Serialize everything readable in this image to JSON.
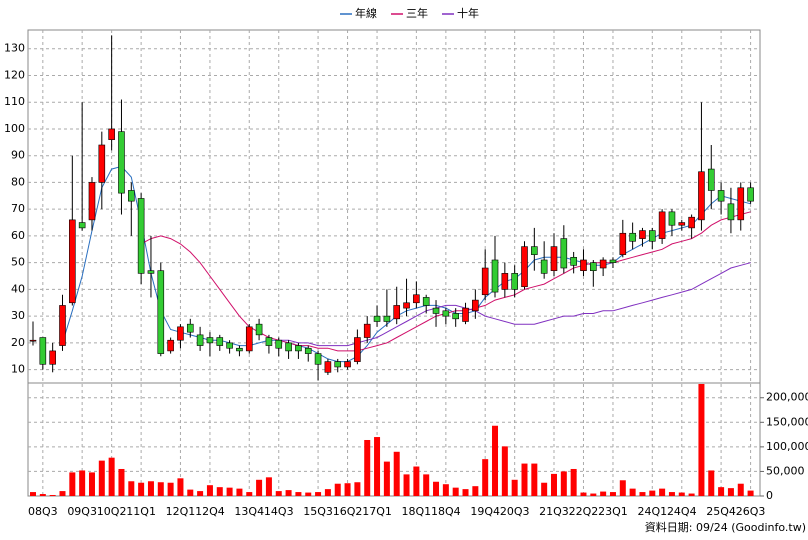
{
  "chart_data": {
    "type": "candlestick",
    "categories": [
      null,
      "08Q3",
      null,
      null,
      null,
      "09Q3",
      null,
      null,
      "10Q2",
      null,
      null,
      "11Q1",
      null,
      null,
      null,
      "12Q1",
      null,
      null,
      "12Q4",
      null,
      null,
      null,
      "13Q4",
      null,
      null,
      "14Q3",
      null,
      null,
      null,
      "15Q3",
      null,
      null,
      "16Q2",
      null,
      null,
      "17Q1",
      null,
      null,
      null,
      "18Q1",
      null,
      null,
      "18Q4",
      null,
      null,
      null,
      "19Q4",
      null,
      null,
      "20Q3",
      null,
      null,
      null,
      "21Q3",
      null,
      null,
      "22Q2",
      null,
      null,
      "23Q1",
      null,
      null,
      null,
      "24Q1",
      null,
      null,
      "24Q4",
      null,
      null,
      null,
      "25Q4",
      null,
      null,
      "26Q3"
    ],
    "open": [
      21,
      22,
      12,
      19,
      35,
      65,
      66,
      80,
      96,
      99,
      77,
      74,
      47,
      47,
      17,
      21,
      27,
      23,
      22,
      22,
      20,
      18,
      17,
      27,
      22,
      21,
      20,
      19,
      18,
      16,
      9,
      13,
      11,
      13,
      22,
      30,
      30,
      29,
      33,
      35,
      37,
      33,
      32,
      31,
      28,
      32,
      38,
      51,
      40,
      46,
      41,
      56,
      51,
      47,
      59,
      52,
      47,
      50,
      48,
      51,
      53,
      61,
      59,
      62,
      59,
      69,
      64,
      63,
      66,
      85,
      77,
      72,
      66,
      78
    ],
    "high": [
      28,
      22,
      20,
      38,
      90,
      110,
      82,
      99,
      135,
      111,
      80,
      76,
      60,
      50,
      22,
      27,
      29,
      26,
      24,
      23,
      21,
      19,
      27,
      29,
      23,
      22,
      21,
      20,
      19,
      17,
      14,
      14,
      14,
      25,
      30,
      34,
      40,
      41,
      44,
      43,
      38,
      36,
      33,
      33,
      35,
      40,
      55,
      60,
      50,
      49,
      58,
      63,
      58,
      61,
      64,
      54,
      55,
      51,
      52,
      52,
      66,
      65,
      63,
      63,
      70,
      70,
      66,
      68,
      110,
      94,
      80,
      78,
      80,
      80
    ],
    "low": [
      19,
      10,
      9,
      17,
      34,
      62,
      62,
      70,
      92,
      68,
      60,
      42,
      37,
      15,
      16,
      18,
      22,
      17,
      15,
      17,
      16,
      15,
      16,
      21,
      16,
      15,
      14,
      14,
      13,
      6,
      8,
      9,
      10,
      12,
      20,
      26,
      26,
      27,
      30,
      33,
      31,
      26,
      27,
      26,
      27,
      29,
      36,
      37,
      37,
      37,
      40,
      47,
      44,
      45,
      46,
      46,
      45,
      41,
      45,
      48,
      52,
      55,
      56,
      55,
      57,
      60,
      62,
      59,
      62,
      70,
      68,
      61,
      62,
      72
    ],
    "close": [
      21,
      12,
      17,
      34,
      66,
      63,
      80,
      94,
      100,
      76,
      73,
      46,
      46,
      16,
      21,
      26,
      24,
      19,
      20,
      19,
      18,
      17,
      26,
      23,
      19,
      18,
      17,
      17,
      16,
      12,
      13,
      11,
      13,
      22,
      27,
      28,
      28,
      34,
      35,
      38,
      34,
      31,
      30,
      29,
      33,
      36,
      48,
      39,
      46,
      40,
      56,
      53,
      46,
      56,
      48,
      49,
      51,
      47,
      51,
      50,
      61,
      58,
      62,
      58,
      69,
      64,
      65,
      67,
      84,
      77,
      73,
      66,
      78,
      73
    ],
    "up_color": "#ff0000",
    "down_color": "#33cc33",
    "volume": [
      8000,
      4000,
      2000,
      10000,
      48000,
      52000,
      48000,
      72000,
      78000,
      55000,
      30000,
      27000,
      30000,
      28000,
      27000,
      36000,
      13000,
      10000,
      22000,
      18000,
      17000,
      15000,
      8000,
      33000,
      38000,
      10000,
      12000,
      8000,
      7000,
      8000,
      14000,
      25000,
      26000,
      28000,
      114000,
      120000,
      70000,
      90000,
      44000,
      60000,
      44000,
      29000,
      24000,
      17000,
      14000,
      20000,
      75000,
      143000,
      101000,
      33000,
      66000,
      66000,
      27000,
      45000,
      50000,
      55000,
      7000,
      5000,
      9000,
      8000,
      32000,
      15000,
      8000,
      11000,
      15000,
      8000,
      7000,
      5000,
      228000,
      52000,
      18000,
      16000,
      25000,
      11000
    ],
    "volume_color": "#ff0000",
    "series": [
      {
        "name": "年線",
        "color": "#2a6fc0",
        "values": [
          null,
          null,
          null,
          20,
          32,
          45,
          62,
          78,
          85,
          86,
          82,
          65,
          46,
          32,
          25,
          24,
          23,
          22,
          21,
          21,
          20,
          19,
          19,
          20,
          21,
          21,
          20,
          19,
          18,
          16,
          14,
          13,
          13,
          15,
          19,
          24,
          27,
          30,
          32,
          33,
          34,
          34,
          33,
          31,
          31,
          32,
          37,
          40,
          43,
          44,
          47,
          51,
          52,
          52,
          52,
          51,
          50,
          49,
          49,
          50,
          53,
          55,
          57,
          59,
          61,
          62,
          63,
          64,
          68,
          72,
          75,
          74,
          73,
          72
        ]
      },
      {
        "name": "三年",
        "color": "#d0106a",
        "values": [
          null,
          null,
          null,
          null,
          null,
          null,
          null,
          null,
          null,
          null,
          null,
          57,
          59,
          60,
          59,
          57,
          54,
          50,
          45,
          40,
          35,
          30,
          26,
          24,
          22,
          21,
          20,
          19,
          19,
          18,
          18,
          17,
          17,
          17,
          18,
          19,
          20,
          22,
          24,
          26,
          28,
          30,
          31,
          32,
          32,
          33,
          34,
          36,
          37,
          38,
          40,
          41,
          42,
          44,
          46,
          48,
          49,
          50,
          50,
          50,
          51,
          52,
          53,
          54,
          55,
          57,
          58,
          59,
          61,
          64,
          66,
          67,
          68,
          69
        ]
      },
      {
        "name": "十年",
        "color": "#8030c0",
        "values": [
          null,
          null,
          null,
          null,
          null,
          null,
          null,
          null,
          null,
          null,
          null,
          null,
          null,
          null,
          null,
          null,
          null,
          null,
          null,
          null,
          null,
          null,
          null,
          null,
          null,
          21,
          21,
          20,
          20,
          19,
          19,
          19,
          19,
          20,
          21,
          22,
          24,
          26,
          28,
          30,
          32,
          33,
          34,
          34,
          33,
          32,
          30,
          29,
          28,
          27,
          27,
          27,
          28,
          29,
          30,
          30,
          31,
          31,
          32,
          32,
          33,
          34,
          35,
          36,
          37,
          38,
          39,
          40,
          42,
          44,
          46,
          48,
          49,
          50
        ]
      }
    ],
    "ylim": [
      5,
      137
    ],
    "yticks": [
      10,
      20,
      30,
      40,
      50,
      60,
      70,
      80,
      90,
      100,
      110,
      120,
      130
    ],
    "y2lim": [
      0,
      230000
    ],
    "y2ticks": [
      0,
      {
        "value": 50000,
        "label": "50,000"
      },
      {
        "value": 100000,
        "label": "100,000"
      },
      {
        "value": 150000,
        "label": "150,000"
      },
      {
        "value": 200000,
        "label": "200,000"
      }
    ],
    "grid": true,
    "legend": "top",
    "footer": "資料日期: 09/24 (Goodinfo.tw)"
  }
}
